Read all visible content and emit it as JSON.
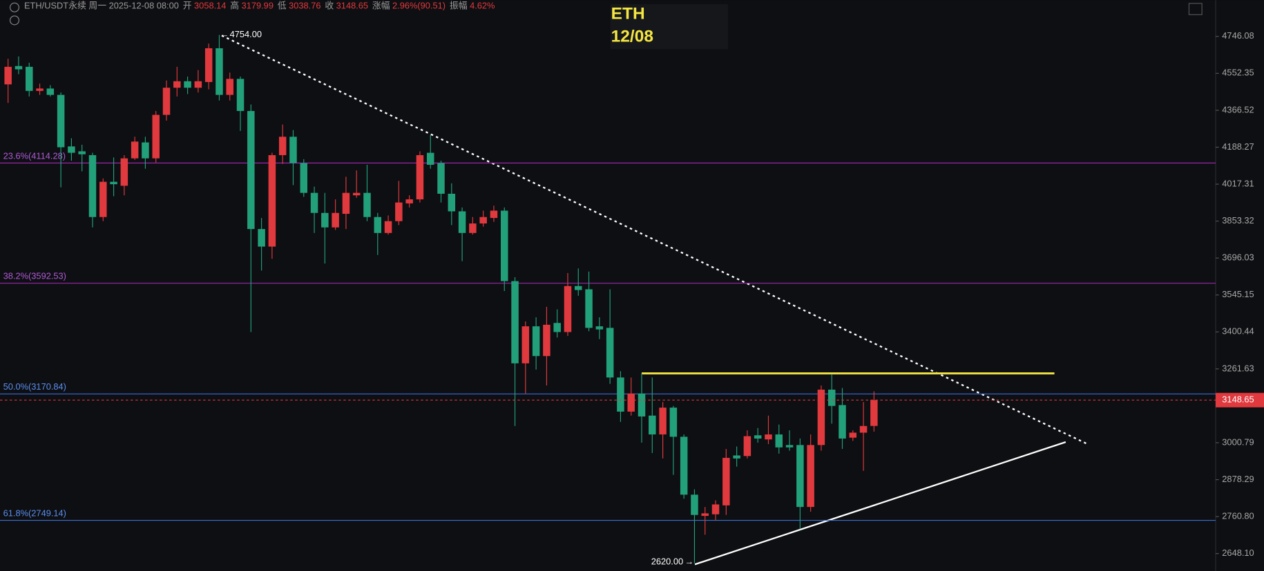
{
  "chart_data": {
    "type": "candlestick",
    "header": {
      "symbol": "ETH/USDT永续 周一 2025-12-08 08:00",
      "fields": [
        {
          "label": "开",
          "value": "3058.14"
        },
        {
          "label": "高",
          "value": "3179.99"
        },
        {
          "label": "低",
          "value": "3038.76"
        },
        {
          "label": "收",
          "value": "3148.65"
        },
        {
          "label": "涨幅",
          "value": "2.96%(90.51)"
        },
        {
          "label": "振幅",
          "value": "4.62%"
        }
      ]
    },
    "overlay": {
      "line1": "ETH",
      "line2": "12/08"
    },
    "log_scale": true,
    "ylim": [
      2597,
      4944
    ],
    "yticks": [
      4746.08,
      4552.35,
      4366.52,
      4188.27,
      4017.31,
      3853.32,
      3696.03,
      3545.15,
      3400.44,
      3261.63,
      3000.79,
      2878.29,
      {
        "value": 2760.8,
        "label": "2760.80"
      },
      {
        "value": 2648.1,
        "label": "2648.10"
      }
    ],
    "up_color": "#e0393e",
    "down_color": "#22a07a",
    "categories": [
      null,
      null,
      null,
      null,
      null,
      null,
      null,
      null,
      null,
      null,
      null,
      null,
      null,
      null,
      null,
      null,
      null,
      null,
      null,
      null,
      null,
      null,
      null,
      null,
      null,
      null,
      null,
      null,
      null,
      null,
      null,
      null,
      null,
      null,
      null,
      null,
      null,
      null,
      null,
      null,
      null,
      null,
      null,
      null,
      null,
      null,
      null,
      null,
      null,
      null,
      null,
      null,
      null,
      null,
      null,
      null,
      null,
      null,
      null,
      null,
      null,
      null,
      null,
      null,
      null,
      null,
      null,
      null,
      null,
      null,
      null,
      null,
      null,
      null,
      null,
      null,
      null,
      null,
      null,
      null,
      null,
      null,
      null
    ],
    "open": [
      4496,
      4590,
      4586,
      4463,
      4475,
      4443,
      4192,
      4169,
      4151,
      3871,
      4028,
      4010,
      4136,
      4211,
      4136,
      4344,
      4479,
      4512,
      4479,
      4508,
      4683,
      4443,
      4524,
      4363,
      3819,
      3744,
      4151,
      4238,
      4114,
      3978,
      3889,
      3826,
      3885,
      3967,
      3978,
      3871,
      3802,
      3853,
      3931,
      3949,
      4162,
      4114,
      3974,
      3896,
      3802,
      3843,
      3867,
      3899,
      3601,
      3282,
      3422,
      3309,
      3435,
      3400,
      3581,
      3568,
      3422,
      3416,
      3230,
      3108,
      3172,
      3094,
      3029,
      3122,
      3021,
      2830,
      2763,
      2768,
      2796,
      2958,
      2956,
      3026,
      3012,
      3029,
      2993,
      2993,
      2791,
      2993,
      3186,
      3131,
      3018,
      3035,
      3058.14
    ],
    "high": [
      4628,
      4640,
      4607,
      4500,
      4492,
      4455,
      4231,
      4200,
      4162,
      4043,
      4140,
      4151,
      4238,
      4238,
      4363,
      4516,
      4586,
      4536,
      4569,
      4708,
      4754,
      4556,
      4536,
      4395,
      3867,
      4162,
      4297,
      4270,
      4132,
      4006,
      3978,
      3949,
      4051,
      4080,
      4106,
      3889,
      3878,
      4032,
      3967,
      4169,
      4246,
      4125,
      4021,
      3913,
      3871,
      3899,
      3921,
      3913,
      3617,
      3441,
      3457,
      3498,
      3488,
      3634,
      3653,
      3640,
      3457,
      3568,
      3253,
      3230,
      3245,
      3230,
      3142,
      3128,
      3029,
      2847,
      2791,
      2812,
      2980,
      2988,
      3043,
      3051,
      3094,
      3063,
      3043,
      3015,
      3029,
      3201,
      3242,
      3192,
      3043,
      3142,
      3179.99
    ],
    "low": [
      4403,
      4548,
      4435,
      4443,
      4435,
      4003,
      4125,
      4076,
      3826,
      3853,
      3963,
      3967,
      4129,
      4088,
      4117,
      4316,
      4435,
      4447,
      4455,
      4471,
      4415,
      4415,
      4266,
      3400,
      3644,
      3693,
      4110,
      4013,
      3960,
      3802,
      3673,
      3815,
      3819,
      3956,
      3853,
      3709,
      3795,
      3836,
      3913,
      3935,
      4088,
      3935,
      3836,
      3683,
      3795,
      3829,
      3850,
      3561,
      3058,
      3172,
      3259,
      3201,
      3379,
      3385,
      3542,
      3403,
      3373,
      3207,
      3072,
      3094,
      3001,
      2966,
      2948,
      2894,
      2817,
      2620,
      2705,
      2749,
      2766,
      2921,
      2948,
      3001,
      2996,
      2964,
      2974,
      2722,
      2776,
      2974,
      3066,
      2980,
      3007,
      2907,
      3038.76
    ],
    "close": [
      4586,
      4573,
      4463,
      4475,
      4443,
      4188,
      4162,
      4155,
      3871,
      4028,
      4017,
      4136,
      4215,
      4136,
      4344,
      4479,
      4512,
      4479,
      4512,
      4683,
      4443,
      4524,
      4363,
      3819,
      3744,
      4151,
      4238,
      4114,
      3978,
      3889,
      3826,
      3889,
      3978,
      3978,
      3871,
      3802,
      3853,
      3935,
      3949,
      4151,
      4106,
      3974,
      3896,
      3802,
      3843,
      3871,
      3899,
      3601,
      3282,
      3422,
      3309,
      3428,
      3400,
      3581,
      3565,
      3416,
      3410,
      3230,
      3108,
      3172,
      3091,
      3029,
      3122,
      3021,
      2830,
      2766,
      2771,
      2799,
      2950,
      2948,
      3023,
      3015,
      3029,
      2985,
      2985,
      2791,
      2993,
      3186,
      3128,
      3015,
      3035,
      3058,
      3148.65
    ],
    "fib_levels": [
      {
        "label": "23.6%(4114.28)",
        "value": 4114.28,
        "color": "#9c27b0",
        "text_color": "#b05ad8"
      },
      {
        "label": "38.2%(3592.53)",
        "value": 3592.53,
        "color": "#9c27b0",
        "text_color": "#b05ad8"
      },
      {
        "label": "50.0%(3170.84)",
        "value": 3170.84,
        "color": "#3b6fd6",
        "text_color": "#5b8ff0"
      },
      {
        "label": "61.8%(2749.14)",
        "value": 2749.14,
        "color": "#3b6fd6",
        "text_color": "#5b8ff0"
      }
    ],
    "resistance": {
      "value": 3245,
      "color": "#f5e642"
    },
    "last_price": 3148.65,
    "annotations": [
      {
        "value": 4754,
        "label": "4754.00"
      },
      {
        "value": 2620,
        "label": "2620.00"
      }
    ]
  }
}
